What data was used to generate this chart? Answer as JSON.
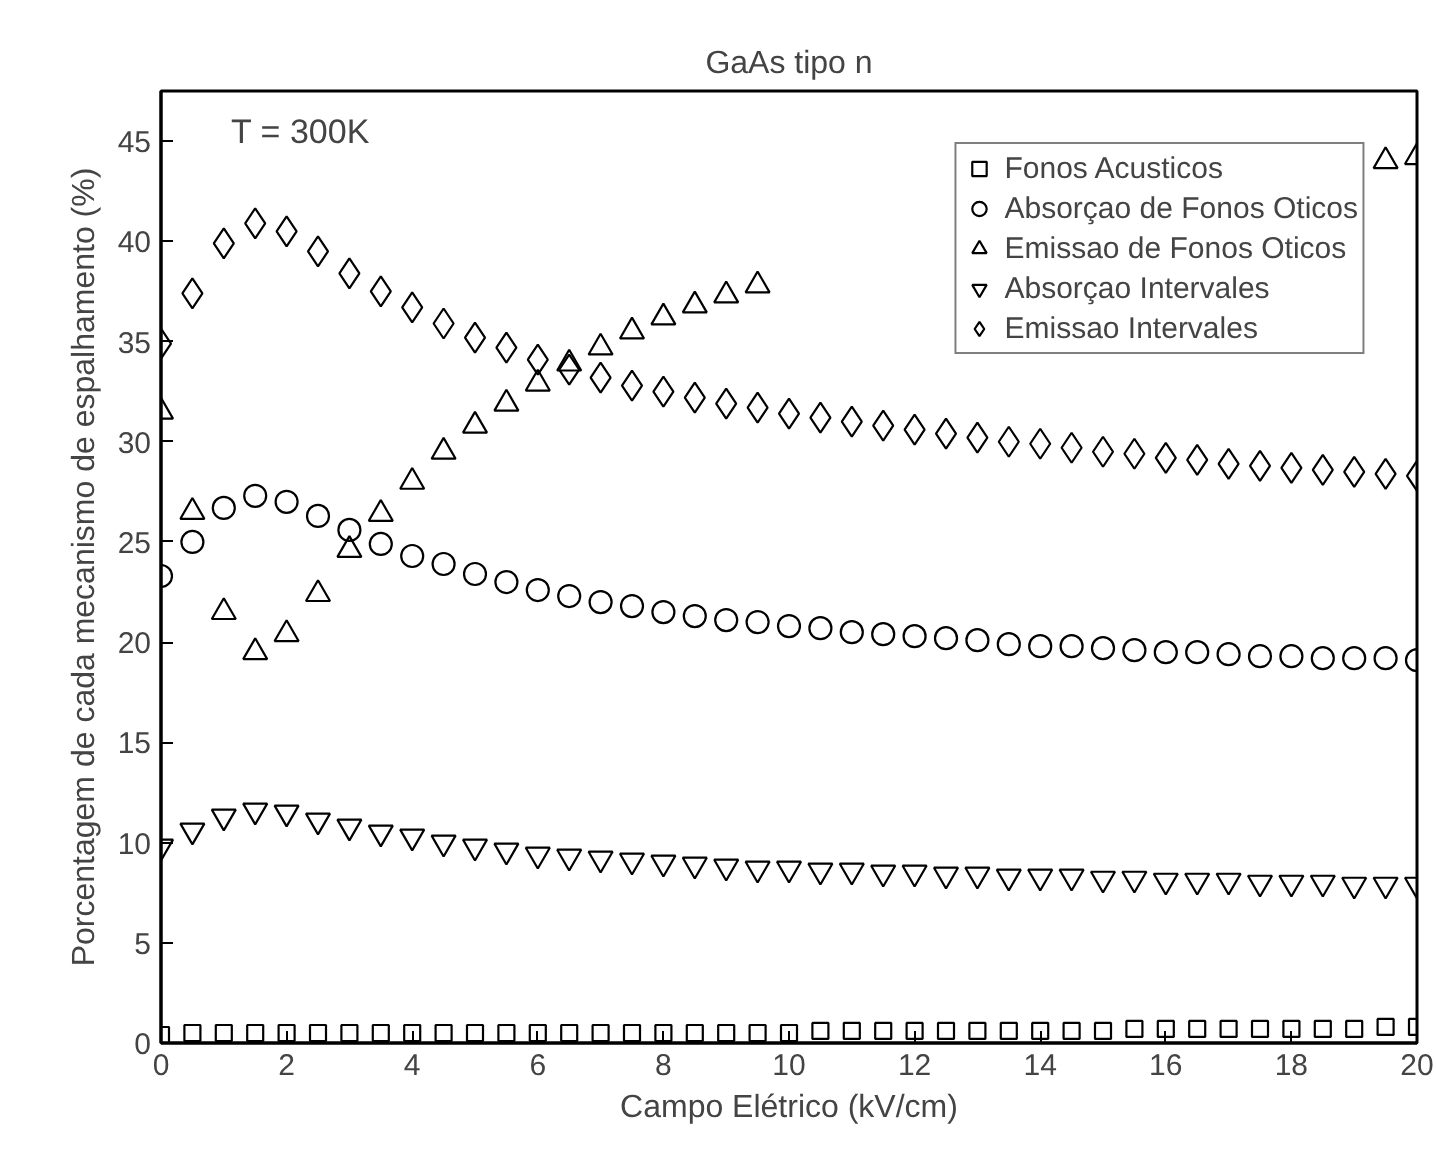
{
  "chart_data": {
    "type": "scatter",
    "title": "GaAs tipo n",
    "xlabel": "Campo Elétrico (kV/cm)",
    "ylabel": "Porcentagem de cada mecanismo de espalhamento (%)",
    "annotations": [
      "T = 300K"
    ],
    "x": [
      0,
      0.5,
      1,
      1.5,
      2,
      2.5,
      3,
      3.5,
      4,
      4.5,
      5,
      5.5,
      6,
      6.5,
      7,
      7.5,
      8,
      8.5,
      9,
      9.5,
      10,
      10.5,
      11,
      11.5,
      12,
      12.5,
      13,
      13.5,
      14,
      14.5,
      15,
      15.5,
      16,
      16.5,
      17,
      17.5,
      18,
      18.5,
      19,
      19.5,
      20
    ],
    "series": [
      {
        "name": "Fonos Acusticos",
        "color": "#000000",
        "marker": "square",
        "values": [
          0.4,
          0.5,
          0.5,
          0.5,
          0.5,
          0.5,
          0.5,
          0.5,
          0.5,
          0.5,
          0.5,
          0.5,
          0.5,
          0.5,
          0.5,
          0.5,
          0.5,
          0.5,
          0.5,
          0.5,
          0.5,
          0.6,
          0.6,
          0.6,
          0.6,
          0.6,
          0.6,
          0.6,
          0.6,
          0.6,
          0.6,
          0.7,
          0.7,
          0.7,
          0.7,
          0.7,
          0.7,
          0.7,
          0.7,
          0.8,
          0.8
        ]
      },
      {
        "name": "Absorçao de Fonos Oticos",
        "color": "#000000",
        "marker": "circle",
        "values": [
          23.3,
          25.0,
          26.7,
          27.3,
          27.0,
          26.3,
          25.6,
          24.9,
          24.3,
          23.9,
          23.4,
          23.0,
          22.6,
          22.3,
          22.0,
          21.8,
          21.5,
          21.3,
          21.1,
          21.0,
          20.8,
          20.7,
          20.5,
          20.4,
          20.3,
          20.2,
          20.1,
          19.9,
          19.8,
          19.8,
          19.7,
          19.6,
          19.5,
          19.5,
          19.4,
          19.3,
          19.3,
          19.2,
          19.2,
          19.2,
          19.1
        ]
      },
      {
        "name": "Emissao de Fonos Oticos",
        "color": "#000000",
        "marker": "triangle",
        "values": [
          31.5,
          26.5,
          21.5,
          19.5,
          20.4,
          22.4,
          24.6,
          26.4,
          28.0,
          29.5,
          30.8,
          31.9,
          32.9,
          33.9,
          34.7,
          35.5,
          36.2,
          36.8,
          37.3,
          37.8,
          null,
          null,
          null,
          null,
          null,
          null,
          null,
          null,
          null,
          null,
          null,
          null,
          null,
          null,
          null,
          null,
          null,
          null,
          null,
          44.0,
          44.2
        ]
      },
      {
        "name": "Absorçao Intervales",
        "color": "#000000",
        "values": [
          9.8,
          10.6,
          11.3,
          11.6,
          11.5,
          11.1,
          10.8,
          10.5,
          10.3,
          10.0,
          9.8,
          9.6,
          9.4,
          9.3,
          9.2,
          9.1,
          9.0,
          8.9,
          8.8,
          8.7,
          8.7,
          8.6,
          8.6,
          8.5,
          8.5,
          8.4,
          8.4,
          8.3,
          8.3,
          8.3,
          8.2,
          8.2,
          8.1,
          8.1,
          8.1,
          8.0,
          8.0,
          8.0,
          7.9,
          7.9,
          7.9
        ]
      },
      {
        "name": "Emissao Intervales",
        "color": "#000000",
        "marker": "diamond",
        "values": [
          34.9,
          37.4,
          39.9,
          40.9,
          40.5,
          39.5,
          38.4,
          37.5,
          36.7,
          35.9,
          35.2,
          34.7,
          34.1,
          33.6,
          33.2,
          32.8,
          32.5,
          32.2,
          31.9,
          31.7,
          31.4,
          31.2,
          31.0,
          30.8,
          30.6,
          30.4,
          30.2,
          30.0,
          29.9,
          29.7,
          29.5,
          29.4,
          29.2,
          29.1,
          28.9,
          28.8,
          28.7,
          28.6,
          28.5,
          28.4,
          28.3
        ]
      }
    ],
    "xlim": [
      0,
      20
    ],
    "xticks": [
      0,
      2,
      4,
      6,
      8,
      10,
      12,
      14,
      16,
      18,
      20
    ],
    "ylim": [
      0,
      47.5
    ],
    "yticks": [
      0,
      5,
      10,
      15,
      20,
      25,
      30,
      35,
      40,
      45
    ],
    "grid": false,
    "legend": "top right"
  }
}
